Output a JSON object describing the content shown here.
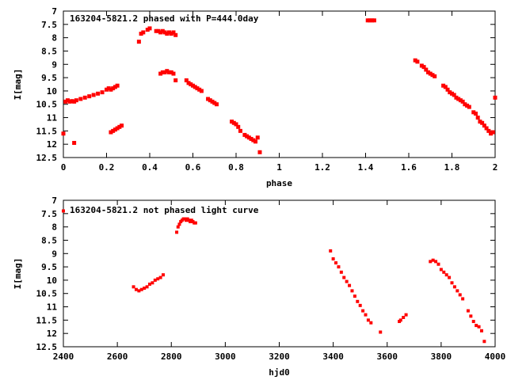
{
  "chart_data": [
    {
      "type": "scatter",
      "title": "163204-5821.2 phased with P=444.0day",
      "xlabel": "phase",
      "ylabel": "I[mag]",
      "xlim": [
        0,
        2
      ],
      "ylim": [
        12.5,
        7
      ],
      "y_inverted": true,
      "grid": false,
      "color": "#ff0000",
      "xticks": [
        "0",
        "0.2",
        "0.4",
        "0.6",
        "0.8",
        "1",
        "1.2",
        "1.4",
        "1.6",
        "1.8",
        "2"
      ],
      "yticks": [
        "7",
        "7.5",
        "8",
        "8.5",
        "9",
        "9.5",
        "10",
        "10.5",
        "11",
        "11.5",
        "12",
        "12.5"
      ],
      "series": [
        {
          "x": [
            0.0,
            0.01,
            0.02,
            0.03,
            0.04,
            0.05,
            0.06,
            0.08,
            0.1,
            0.12,
            0.14,
            0.16,
            0.18,
            0.2,
            0.21,
            0.22,
            0.23,
            0.24,
            0.25,
            0.05,
            0.22,
            0.23,
            0.24,
            0.25,
            0.26,
            0.27,
            0.35,
            0.36,
            0.37,
            0.39,
            0.4,
            0.43,
            0.44,
            0.45,
            0.46,
            0.47,
            0.48,
            0.49,
            0.5,
            0.51,
            0.52,
            0.45,
            0.46,
            0.47,
            0.48,
            0.49,
            0.5,
            0.51,
            0.52,
            0.57,
            0.58,
            0.59,
            0.6,
            0.61,
            0.62,
            0.63,
            0.64,
            0.67,
            0.68,
            0.69,
            0.7,
            0.71,
            0.78,
            0.79,
            0.8,
            0.81,
            0.82,
            0.84,
            0.85,
            0.86,
            0.87,
            0.88,
            0.89,
            0.9,
            0.91,
            1.41,
            1.42,
            1.43,
            1.44,
            1.63,
            1.64,
            1.66,
            1.67,
            1.68,
            1.69,
            1.7,
            1.71,
            1.72,
            1.76,
            1.77,
            1.78,
            1.79,
            1.8,
            1.81,
            1.82,
            1.83,
            1.84,
            1.85,
            1.86,
            1.87,
            1.88,
            1.9,
            1.91,
            1.92,
            1.93,
            1.94,
            1.95,
            1.96,
            1.97,
            1.98,
            1.99,
            2.0
          ],
          "y": [
            11.6,
            10.4,
            10.35,
            10.4,
            10.38,
            10.4,
            10.35,
            10.3,
            10.25,
            10.2,
            10.15,
            10.1,
            10.05,
            9.95,
            9.9,
            9.95,
            9.9,
            9.85,
            9.8,
            11.95,
            11.55,
            11.5,
            11.45,
            11.4,
            11.35,
            11.3,
            8.15,
            7.85,
            7.8,
            7.7,
            7.65,
            7.75,
            7.75,
            7.8,
            7.75,
            7.8,
            7.85,
            7.8,
            7.85,
            7.8,
            7.9,
            9.35,
            9.3,
            9.3,
            9.25,
            9.3,
            9.3,
            9.35,
            9.6,
            9.6,
            9.7,
            9.75,
            9.8,
            9.85,
            9.9,
            9.95,
            10.0,
            10.3,
            10.35,
            10.4,
            10.45,
            10.5,
            11.15,
            11.2,
            11.25,
            11.35,
            11.5,
            11.65,
            11.7,
            11.75,
            11.8,
            11.85,
            11.9,
            11.75,
            12.3,
            7.35,
            7.35,
            7.35,
            7.35,
            8.85,
            8.9,
            9.05,
            9.1,
            9.2,
            9.3,
            9.35,
            9.4,
            9.45,
            9.8,
            9.85,
            9.95,
            10.05,
            10.1,
            10.15,
            10.25,
            10.3,
            10.35,
            10.4,
            10.5,
            10.55,
            10.6,
            10.8,
            10.85,
            11.0,
            11.15,
            11.2,
            11.3,
            11.4,
            11.5,
            11.6,
            11.55,
            10.25
          ]
        }
      ]
    },
    {
      "type": "scatter",
      "title": "163204-5821.2 not phased light curve",
      "xlabel": "hjd0",
      "ylabel": "I[mag]",
      "xlim": [
        2400,
        4000
      ],
      "ylim": [
        12.5,
        7
      ],
      "y_inverted": true,
      "grid": false,
      "color": "#ff0000",
      "xticks": [
        "2400",
        "2600",
        "2800",
        "3000",
        "3200",
        "3400",
        "3600",
        "3800",
        "4000"
      ],
      "yticks": [
        "7",
        "7.5",
        "8",
        "8.5",
        "9",
        "9.5",
        "10",
        "10.5",
        "11",
        "11.5",
        "12",
        "12.5"
      ],
      "series": [
        {
          "x": [
            2400,
            2660,
            2670,
            2680,
            2690,
            2700,
            2710,
            2720,
            2730,
            2740,
            2750,
            2760,
            2770,
            2820,
            2825,
            2830,
            2835,
            2840,
            2845,
            2850,
            2855,
            2860,
            2865,
            2870,
            2875,
            2880,
            2885,
            2890,
            3390,
            3400,
            3410,
            3420,
            3430,
            3440,
            3450,
            3460,
            3470,
            3480,
            3490,
            3500,
            3510,
            3520,
            3530,
            3540,
            3575,
            3645,
            3650,
            3660,
            3670,
            3760,
            3770,
            3780,
            3790,
            3800,
            3810,
            3820,
            3830,
            3840,
            3850,
            3860,
            3870,
            3880,
            3900,
            3910,
            3920,
            3930,
            3940,
            3950,
            3960
          ],
          "y": [
            7.4,
            10.25,
            10.35,
            10.4,
            10.35,
            10.3,
            10.25,
            10.15,
            10.1,
            10.0,
            9.95,
            9.9,
            9.8,
            8.2,
            8.0,
            7.9,
            7.8,
            7.75,
            7.7,
            7.7,
            7.75,
            7.7,
            7.75,
            7.8,
            7.75,
            7.8,
            7.85,
            7.85,
            8.9,
            9.2,
            9.35,
            9.5,
            9.7,
            9.9,
            10.05,
            10.2,
            10.4,
            10.6,
            10.8,
            10.95,
            11.15,
            11.3,
            11.5,
            11.6,
            11.95,
            11.55,
            11.5,
            11.4,
            11.3,
            9.3,
            9.25,
            9.3,
            9.4,
            9.6,
            9.7,
            9.8,
            9.9,
            10.1,
            10.25,
            10.4,
            10.55,
            10.7,
            11.15,
            11.35,
            11.55,
            11.7,
            11.75,
            11.9,
            12.3
          ]
        }
      ]
    }
  ]
}
